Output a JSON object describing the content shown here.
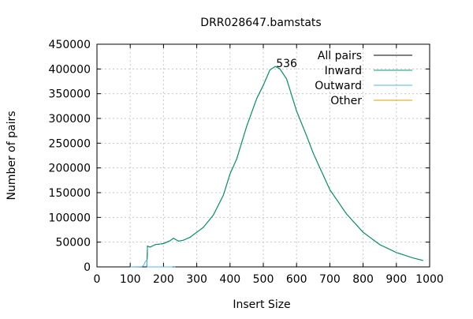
{
  "chart_data": {
    "type": "line",
    "title": "DRR028647.bamstats",
    "xlabel": "Insert Size",
    "ylabel": "Number of pairs",
    "xlim": [
      0,
      1000
    ],
    "ylim": [
      0,
      450000
    ],
    "xticks": [
      0,
      100,
      200,
      300,
      400,
      500,
      600,
      700,
      800,
      900,
      1000
    ],
    "yticks": [
      0,
      50000,
      100000,
      150000,
      200000,
      250000,
      300000,
      350000,
      400000,
      450000
    ],
    "grid": true,
    "legend_position": "top-right",
    "annotation": {
      "text": "536",
      "x": 536,
      "y": 405000
    },
    "series": [
      {
        "name": "All pairs",
        "color": "#000000",
        "x": [
          150,
          152,
          160,
          175,
          200,
          220,
          230,
          245,
          260,
          280,
          300,
          320,
          350,
          380,
          400,
          420,
          450,
          480,
          500,
          520,
          536,
          550,
          570,
          600,
          630,
          650,
          700,
          750,
          800,
          850,
          900,
          950,
          980
        ],
        "y": [
          0,
          42000,
          40000,
          45000,
          47000,
          53000,
          58000,
          52000,
          54000,
          60000,
          70000,
          80000,
          105000,
          145000,
          188000,
          218000,
          284000,
          340000,
          367000,
          398000,
          405000,
          400000,
          380000,
          315000,
          265000,
          230000,
          156000,
          107000,
          70000,
          45000,
          29000,
          18000,
          13000
        ]
      },
      {
        "name": "Inward",
        "color": "#009e73",
        "x": [
          150,
          152,
          160,
          175,
          200,
          220,
          230,
          245,
          260,
          280,
          300,
          320,
          350,
          380,
          400,
          420,
          450,
          480,
          500,
          520,
          536,
          550,
          570,
          600,
          630,
          650,
          700,
          750,
          800,
          850,
          900,
          950,
          980
        ],
        "y": [
          0,
          42000,
          40000,
          45000,
          47000,
          53000,
          58000,
          52000,
          54000,
          60000,
          70000,
          80000,
          105000,
          145000,
          188000,
          218000,
          284000,
          340000,
          367000,
          398000,
          405000,
          400000,
          380000,
          315000,
          265000,
          230000,
          156000,
          107000,
          70000,
          45000,
          29000,
          18000,
          13000
        ]
      },
      {
        "name": "Outward",
        "color": "#56b4e9",
        "x": [
          100,
          135,
          140,
          145,
          150,
          151,
          225,
          230,
          235
        ],
        "y": [
          0,
          500,
          3000,
          10000,
          14000,
          0,
          0,
          800,
          0
        ]
      },
      {
        "name": "Other",
        "color": "#e69f00",
        "x": [],
        "y": []
      }
    ]
  }
}
